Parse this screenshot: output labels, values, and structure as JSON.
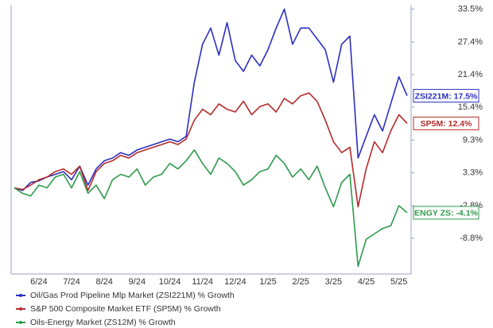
{
  "chart_data": {
    "type": "line",
    "categories": [
      null,
      null,
      null,
      "6/24",
      null,
      null,
      null,
      "7/24",
      null,
      null,
      null,
      "8/24",
      null,
      null,
      null,
      "9/24",
      null,
      null,
      null,
      "10/24",
      null,
      null,
      null,
      "11/24",
      null,
      null,
      null,
      "12/24",
      null,
      null,
      null,
      "1/25",
      null,
      null,
      null,
      "2/25",
      null,
      null,
      null,
      "3/25",
      null,
      null,
      null,
      "4/25",
      null,
      null,
      null,
      "5/25",
      null
    ],
    "series": [
      {
        "name": "Oil/Gas Prod Pipeline Mlp Market (ZSI221M) % Growth",
        "color": "#2b2fc0",
        "values": [
          0.5,
          0.0,
          1.5,
          1.8,
          2.5,
          3.0,
          3.5,
          2.0,
          4.5,
          1.0,
          4.0,
          5.5,
          6.0,
          7.0,
          6.5,
          7.5,
          8.0,
          8.5,
          9.0,
          9.5,
          9.0,
          10.0,
          20.0,
          27.0,
          30.0,
          25.0,
          31.0,
          24.0,
          22.0,
          25.0,
          23.0,
          26.0,
          30.0,
          33.5,
          27.0,
          30.0,
          30.0,
          28.0,
          26.0,
          20.0,
          27.0,
          28.5,
          6.0,
          10.0,
          14.0,
          11.0,
          16.0,
          21.0,
          17.5
        ],
        "value_labels": [
          null,
          null,
          null,
          null,
          null,
          null,
          null,
          null,
          null,
          null,
          null,
          null,
          null,
          null,
          null,
          null,
          null,
          null,
          null,
          null,
          null,
          null,
          null,
          null,
          null,
          null,
          null,
          null,
          null,
          null,
          null,
          null,
          null,
          null,
          null,
          null,
          null,
          null,
          null,
          null,
          null,
          null,
          null,
          null,
          null,
          null,
          null,
          null,
          "ZSI221M: 17.5%"
        ]
      },
      {
        "name": "S&P 500 Composite Market ETF (SP5M) % Growth",
        "color": "#b52a2a",
        "values": [
          0.5,
          0.2,
          1.0,
          2.0,
          2.5,
          3.5,
          4.0,
          3.0,
          4.5,
          0.0,
          3.5,
          5.0,
          5.5,
          6.5,
          6.0,
          7.0,
          7.5,
          8.0,
          8.5,
          9.0,
          8.5,
          9.5,
          13.0,
          15.0,
          14.0,
          16.0,
          15.0,
          14.5,
          16.5,
          14.0,
          15.5,
          16.0,
          14.5,
          17.0,
          16.0,
          17.5,
          18.0,
          16.5,
          13.0,
          9.0,
          7.0,
          8.0,
          -3.0,
          4.0,
          9.0,
          7.0,
          11.0,
          14.0,
          12.4
        ],
        "value_labels": [
          null,
          null,
          null,
          null,
          null,
          null,
          null,
          null,
          null,
          null,
          null,
          null,
          null,
          null,
          null,
          null,
          null,
          null,
          null,
          null,
          null,
          null,
          null,
          null,
          null,
          null,
          null,
          null,
          null,
          null,
          null,
          null,
          null,
          null,
          null,
          null,
          null,
          null,
          null,
          null,
          null,
          null,
          null,
          null,
          null,
          null,
          null,
          null,
          "SP5M: 12.4%"
        ]
      },
      {
        "name": "Oils-Energy Market (ZS12M) % Growth",
        "color": "#2f9a4c",
        "values": [
          0.5,
          -0.5,
          -1.0,
          1.0,
          0.5,
          2.5,
          3.0,
          0.5,
          3.5,
          -0.5,
          1.0,
          -1.5,
          2.0,
          3.0,
          2.5,
          4.0,
          1.0,
          2.5,
          3.0,
          5.0,
          4.0,
          5.5,
          7.5,
          5.0,
          3.0,
          6.0,
          5.0,
          3.5,
          1.0,
          2.0,
          3.5,
          4.0,
          6.5,
          5.0,
          2.5,
          4.0,
          2.0,
          4.5,
          0.5,
          -3.0,
          1.5,
          3.0,
          -14.0,
          -9.0,
          -8.0,
          -7.0,
          -6.5,
          -2.8,
          -4.1
        ],
        "value_labels": [
          null,
          null,
          null,
          null,
          null,
          null,
          null,
          null,
          null,
          null,
          null,
          null,
          null,
          null,
          null,
          null,
          null,
          null,
          null,
          null,
          null,
          null,
          null,
          null,
          null,
          null,
          null,
          null,
          null,
          null,
          null,
          null,
          null,
          null,
          null,
          null,
          null,
          null,
          null,
          null,
          null,
          null,
          null,
          null,
          null,
          null,
          null,
          null,
          "ENGY ZS: -4.1%"
        ]
      }
    ],
    "ylim": [
      -15.4,
      34
    ],
    "yticks": [
      {
        "value": 33.5,
        "label": "33.5%"
      },
      {
        "value": 27.4,
        "label": "27.4%"
      },
      {
        "value": 21.4,
        "label": "21.4%"
      },
      {
        "value": 15.4,
        "label": "15.4%"
      },
      {
        "value": 9.3,
        "label": "9.3%"
      },
      {
        "value": 3.3,
        "label": "3.3%"
      },
      {
        "value": -2.8,
        "label": "-2.8%"
      },
      {
        "value": -8.8,
        "label": "-8.8%"
      }
    ],
    "y_axis_side": "right",
    "grid": false
  }
}
